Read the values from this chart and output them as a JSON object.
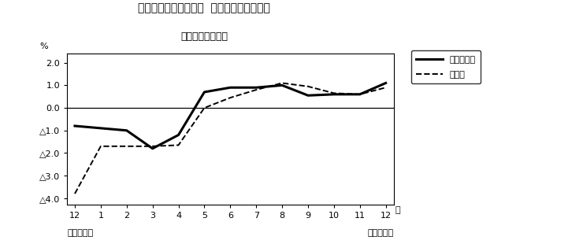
{
  "title_line1": "第３図　常用雇用指数  対前年同月比の推移",
  "title_line2": "（規模５人以上）",
  "xlabel_months": [
    "12",
    "1",
    "2",
    "3",
    "4",
    "5",
    "6",
    "7",
    "8",
    "9",
    "10",
    "11",
    "12"
  ],
  "xlabel_years_left": "平成２１年",
  "xlabel_years_right": "平成２２年",
  "month_label_suffix": "月",
  "ytick_labels": [
    "2.0",
    "1.0",
    "0.0",
    "△1.0",
    "△2.0",
    "△3.0",
    "△4.0"
  ],
  "ytick_values": [
    2.0,
    1.0,
    0.0,
    -1.0,
    -2.0,
    -3.0,
    -4.0
  ],
  "ylim": [
    -4.3,
    2.4
  ],
  "ylabel": "%",
  "series1_name": "調査産業計",
  "series1_values": [
    -0.8,
    -0.9,
    -1.0,
    -1.8,
    -1.2,
    0.7,
    0.9,
    0.9,
    1.0,
    0.55,
    0.6,
    0.6,
    1.1
  ],
  "series2_name": "製造業",
  "series2_values": [
    -3.8,
    -1.7,
    -1.7,
    -1.7,
    -1.65,
    0.0,
    0.45,
    0.8,
    1.1,
    0.95,
    0.65,
    0.6,
    0.9
  ],
  "series1_color": "#000000",
  "series2_color": "#000000",
  "series1_lw": 2.2,
  "series2_lw": 1.4,
  "series1_ls": "solid",
  "series2_ls": "dashed",
  "zero_line_color": "#000000",
  "background_color": "#ffffff",
  "plot_bg_color": "#ffffff",
  "border_color": "#000000",
  "figsize": [
    7.4,
    3.1
  ],
  "dpi": 100
}
